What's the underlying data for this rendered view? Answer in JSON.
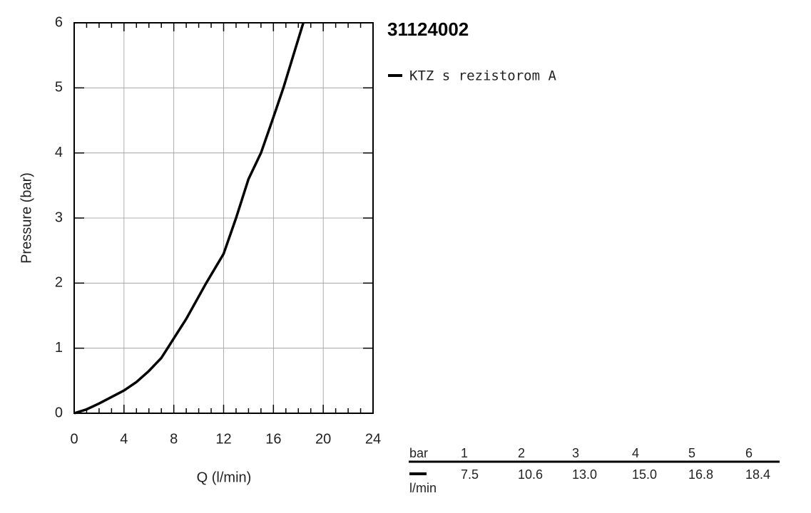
{
  "chart_data": {
    "type": "line",
    "title": "31124002",
    "x_label": "Q (l/min)",
    "y_label": "Pressure (bar)",
    "xlim": [
      0,
      24
    ],
    "xticks": [
      0,
      4,
      8,
      12,
      16,
      20,
      24
    ],
    "ylim": [
      0,
      6
    ],
    "yticks": [
      0,
      1,
      2,
      3,
      4,
      5,
      6
    ],
    "grid": true,
    "series": [
      {
        "name": "KTZ s rezistorom A",
        "color": "#000000",
        "x": [
          0,
          1,
          2,
          3,
          4,
          5,
          6,
          7,
          7.5,
          9,
          10.6,
          12,
          13,
          14,
          15,
          16,
          16.8,
          17.6,
          18.4
        ],
        "values": [
          0,
          0.06,
          0.15,
          0.25,
          0.35,
          0.48,
          0.65,
          0.85,
          1,
          1.45,
          2,
          2.45,
          3,
          3.6,
          4,
          4.55,
          5,
          5.5,
          6
        ]
      }
    ]
  },
  "table": {
    "row_label": "bar",
    "pressures": [
      "1",
      "2",
      "3",
      "4",
      "5",
      "6"
    ],
    "unit": "l/min",
    "flows": [
      "7.5",
      "10.6",
      "13.0",
      "15.0",
      "16.8",
      "18.4"
    ]
  }
}
